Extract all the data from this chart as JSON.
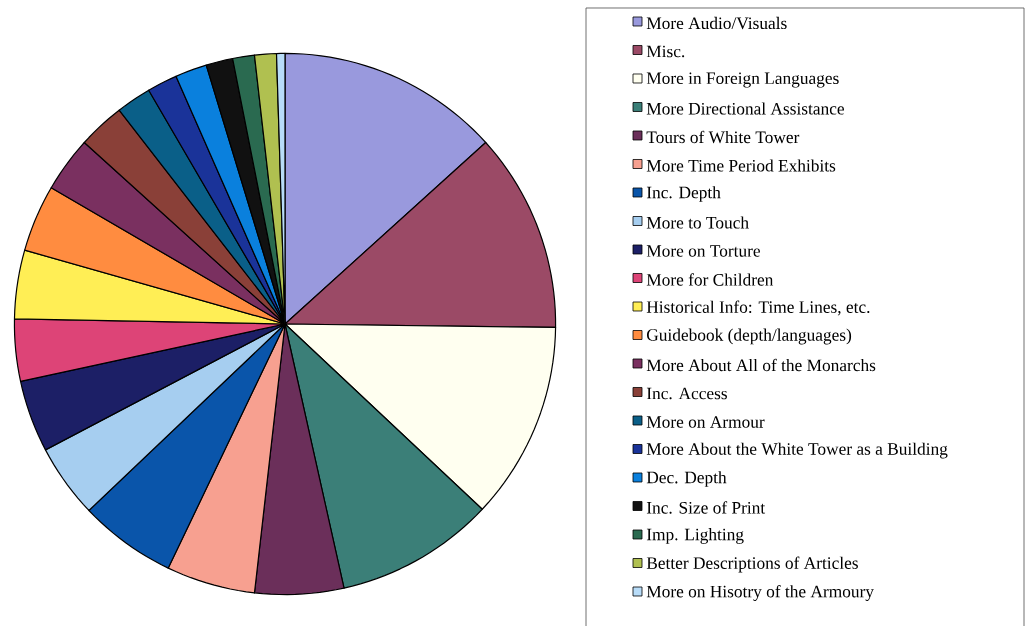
{
  "chart_data": {
    "type": "pie",
    "legend": "right",
    "categories": [
      "More Audio/Visuals",
      "Misc.",
      "More in Foreign Languages",
      "More Directional Assistance",
      "Tours of White Tower",
      "More Time Period Exhibits",
      "Inc. Depth",
      "More to Touch",
      "More on Torture",
      "More for Children",
      "Historical Info: Time Lines, etc.",
      "Guidebook (depth/languages)",
      "More About All of the Monarchs",
      "Inc. Access",
      "More on Armour",
      "More About the White Tower as a Building",
      "Dec. Depth",
      "Inc. Size of Print",
      "Imp. Lighting",
      "Better Descriptions of Articles",
      "More on Hisotry of the Armoury"
    ],
    "values": [
      13.3,
      11.9,
      11.8,
      9.5,
      5.3,
      5.3,
      5.8,
      4.4,
      4.3,
      3.7,
      4.1,
      4.0,
      3.3,
      2.8,
      2.1,
      1.8,
      1.9,
      1.6,
      1.3,
      1.3,
      0.5
    ],
    "colors": [
      "#9999dd",
      "#9b4a66",
      "#fffff0",
      "#3b7f78",
      "#6b2f5a",
      "#f7a090",
      "#0a55aa",
      "#a6cef0",
      "#1c1f66",
      "#dd4477",
      "#ffee55",
      "#ff8c40",
      "#7a3060",
      "#8a4038",
      "#0a5f88",
      "#1a3399",
      "#0a80dd",
      "#111111",
      "#2a6a50",
      "#b0c050",
      "#b8dcf8"
    ]
  }
}
